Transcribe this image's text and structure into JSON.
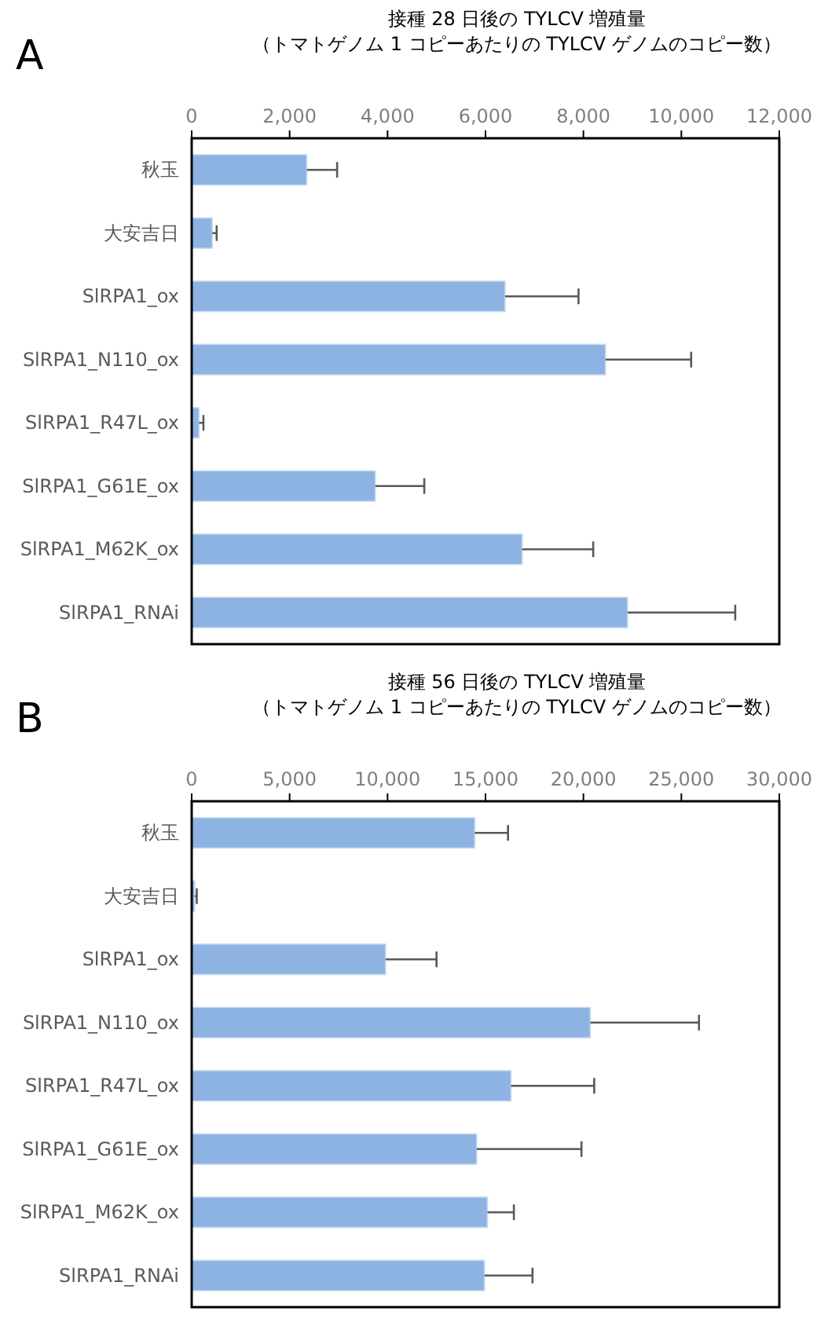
{
  "chart_data": [
    {
      "type": "bar",
      "orientation": "horizontal",
      "title": "接種 28 日後の TYLCV 増殖量",
      "subtitle": "（トマトゲノム 1 コピーあたりの TYLCV ゲノムのコピー数）",
      "annotations": [
        "A"
      ],
      "categories": [
        "秋玉",
        "大安吉日",
        "SlRPA1_ox",
        "SlRPA1_N110_ox",
        "SlRPA1_R47L_ox",
        "SlRPA1_G61E_ox",
        "SlRPA1_M62K_ox",
        "SlRPA1_RNAi"
      ],
      "values": [
        2350,
        420,
        6400,
        8450,
        150,
        3750,
        6750,
        8900
      ],
      "errors": [
        [
          2350,
          2970
        ],
        [
          420,
          510
        ],
        [
          6400,
          7900
        ],
        [
          8450,
          10200
        ],
        [
          150,
          240
        ],
        [
          3750,
          4750
        ],
        [
          6750,
          8200
        ],
        [
          8900,
          11100
        ]
      ],
      "color": "#8db3e2",
      "xlim": [
        0,
        12000
      ],
      "xticks": [
        0,
        {
          "value": 2000,
          "label": "2,000"
        },
        {
          "value": 4000,
          "label": "4,000"
        },
        {
          "value": 6000,
          "label": "6,000"
        },
        {
          "value": 8000,
          "label": "8,000"
        },
        {
          "value": 10000,
          "label": "10,000"
        },
        {
          "value": 12000,
          "label": "12,000"
        }
      ]
    },
    {
      "type": "bar",
      "orientation": "horizontal",
      "title": "接種 56 日後の TYLCV 増殖量",
      "subtitle": "（トマトゲノム 1 コピーあたりの TYLCV ゲノムのコピー数）",
      "annotations": [
        "B"
      ],
      "categories": [
        "秋玉",
        "大安吉日",
        "SlRPA1_ox",
        "SlRPA1_N110_ox",
        "SlRPA1_R47L_ox",
        "SlRPA1_G61E_ox",
        "SlRPA1_M62K_ox",
        "SlRPA1_RNAi"
      ],
      "values": [
        14450,
        150,
        9900,
        20350,
        16300,
        14550,
        15100,
        14950
      ],
      "errors": [
        [
          14450,
          16150
        ],
        [
          150,
          260
        ],
        [
          9900,
          12500
        ],
        [
          20350,
          25900
        ],
        [
          16300,
          20550
        ],
        [
          14550,
          19900
        ],
        [
          15100,
          16450
        ],
        [
          14950,
          17400
        ]
      ],
      "color": "#8db3e2",
      "xlim": [
        0,
        30000
      ],
      "xticks": [
        0,
        {
          "value": 5000,
          "label": "5,000"
        },
        {
          "value": 10000,
          "label": "10,000"
        },
        {
          "value": 15000,
          "label": "15,000"
        },
        {
          "value": 20000,
          "label": "20,000"
        },
        {
          "value": 25000,
          "label": "25,000"
        },
        {
          "value": 30000,
          "label": "30,000"
        }
      ]
    }
  ]
}
